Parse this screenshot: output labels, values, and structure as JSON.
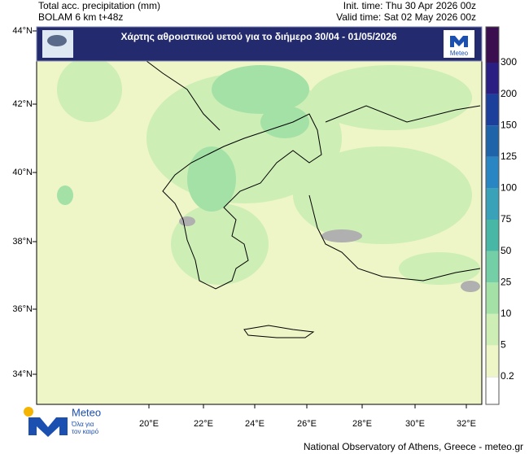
{
  "header": {
    "title": "Total acc. precipitation (mm)",
    "model": "BOLAM 6 km t+48z",
    "init_time": "Init. time: Thu 30 Apr 2026 00z",
    "valid_time": "Valid time: Sat 02 May 2026 00z"
  },
  "banner": {
    "title": "Χάρτης αθροιστικού υετού για το διήμερο 30/04 - 01/05/2026",
    "logo": "Meteo"
  },
  "map": {
    "lat_labels": [
      "44°N",
      "42°N",
      "40°N",
      "38°N",
      "36°N",
      "34°N"
    ],
    "lon_labels": [
      "20°E",
      "22°E",
      "24°E",
      "26°E",
      "28°E",
      "30°E",
      "32°E"
    ]
  },
  "legend": {
    "bottom_color": "#ffffff",
    "levels": [
      {
        "label": "0.2",
        "color": "#eef5c6"
      },
      {
        "label": "5",
        "color": "#cdeeb5"
      },
      {
        "label": "10",
        "color": "#a4e1a6"
      },
      {
        "label": "25",
        "color": "#74cfa6"
      },
      {
        "label": "50",
        "color": "#48b7a6"
      },
      {
        "label": "75",
        "color": "#3aa2b8"
      },
      {
        "label": "100",
        "color": "#2a86c2"
      },
      {
        "label": "125",
        "color": "#1f64a8"
      },
      {
        "label": "150",
        "color": "#1d3f9c"
      },
      {
        "label": "200",
        "color": "#2b1e82"
      },
      {
        "label": "300",
        "color": "#3b0f4f"
      }
    ]
  },
  "logo": {
    "name": "Meteo",
    "tagline_1": "Όλα για",
    "tagline_2": "τον καιρό"
  },
  "footer": "National Observatory of Athens, Greece - meteo.gr"
}
